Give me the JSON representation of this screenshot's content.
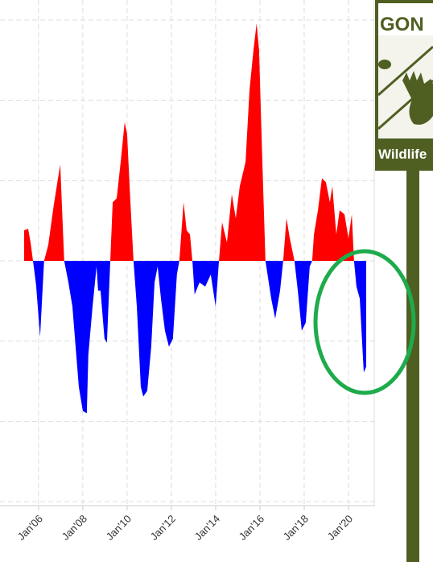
{
  "chart_data": {
    "type": "area",
    "x": [
      2005.35,
      2005.53,
      2005.64,
      2005.75,
      2005.89,
      2006.07,
      2006.25,
      2006.44,
      2006.69,
      2006.98,
      2007.16,
      2007.35,
      2007.53,
      2007.82,
      2008.0,
      2008.18,
      2008.25,
      2008.44,
      2008.62,
      2008.69,
      2008.8,
      2008.98,
      2009.09,
      2009.24,
      2009.35,
      2009.53,
      2009.71,
      2009.89,
      2010.0,
      2010.15,
      2010.29,
      2010.44,
      2010.62,
      2010.73,
      2010.91,
      2011.09,
      2011.24,
      2011.38,
      2011.53,
      2011.71,
      2011.89,
      2012.07,
      2012.25,
      2012.36,
      2012.55,
      2012.69,
      2012.84,
      2012.95,
      2013.05,
      2013.27,
      2013.53,
      2013.78,
      2014.0,
      2014.15,
      2014.29,
      2014.51,
      2014.73,
      2014.91,
      2015.09,
      2015.35,
      2015.53,
      2015.71,
      2015.85,
      2015.96,
      2016.11,
      2016.25,
      2016.51,
      2016.69,
      2016.91,
      2017.05,
      2017.2,
      2017.35,
      2017.56,
      2017.71,
      2017.89,
      2018.07,
      2018.25,
      2018.36,
      2018.44,
      2018.62,
      2018.8,
      2018.98,
      2019.16,
      2019.27,
      2019.45,
      2019.6,
      2019.82,
      2020.0,
      2020.15,
      2020.25,
      2020.36,
      2020.51,
      2020.69,
      2020.8
    ],
    "values": [
      0.38,
      0.4,
      0.23,
      0,
      -0.3,
      -0.95,
      0,
      0.2,
      0.7,
      1.2,
      0,
      -0.27,
      -0.57,
      -1.57,
      -1.87,
      -1.9,
      -1.17,
      -0.57,
      -0.07,
      -0.37,
      -0.37,
      -0.97,
      -1.02,
      0,
      0.73,
      0.78,
      1.23,
      1.73,
      1.58,
      0.73,
      0,
      -0.57,
      -1.57,
      -1.69,
      -1.62,
      -1.07,
      -0.27,
      -0.07,
      -0.47,
      -0.87,
      -1.07,
      -0.97,
      -0.17,
      0,
      0.73,
      0.38,
      0.33,
      0,
      -0.42,
      -0.27,
      -0.32,
      -0.17,
      -0.57,
      0,
      0.48,
      0.23,
      0.83,
      0.53,
      0.93,
      1.23,
      2.13,
      2.63,
      2.96,
      2.63,
      1.23,
      0,
      -0.47,
      -0.72,
      -0.37,
      0,
      0.53,
      0.28,
      0,
      -0.37,
      -0.87,
      -0.77,
      -0.07,
      0,
      0.33,
      0.63,
      1.03,
      0.98,
      0.73,
      0.93,
      0.33,
      0.63,
      0.58,
      0.28,
      0.58,
      0,
      -0.32,
      -0.47,
      -1.39,
      -1.32
    ],
    "positive_color": "#ff0000",
    "negative_color": "#0000ff",
    "xlim": [
      2005.35,
      2021.2
    ],
    "xticks": [
      {
        "value": 2006,
        "label": "Jan'06"
      },
      {
        "value": 2008,
        "label": "Jan'08"
      },
      {
        "value": 2010,
        "label": "Jan'10"
      },
      {
        "value": 2012,
        "label": "Jan'12"
      },
      {
        "value": 2014,
        "label": "Jan'14"
      },
      {
        "value": 2016,
        "label": "Jan'16"
      },
      {
        "value": 2018,
        "label": "Jan'18"
      },
      {
        "value": 2020,
        "label": "Jan'20"
      }
    ],
    "ylim": [
      -3,
      3
    ],
    "yticks": [
      -3,
      -2,
      -1,
      0,
      1,
      2,
      3
    ],
    "grid": true
  },
  "sign": {
    "top_text": "GON",
    "bottom_text": "Wildlife"
  }
}
